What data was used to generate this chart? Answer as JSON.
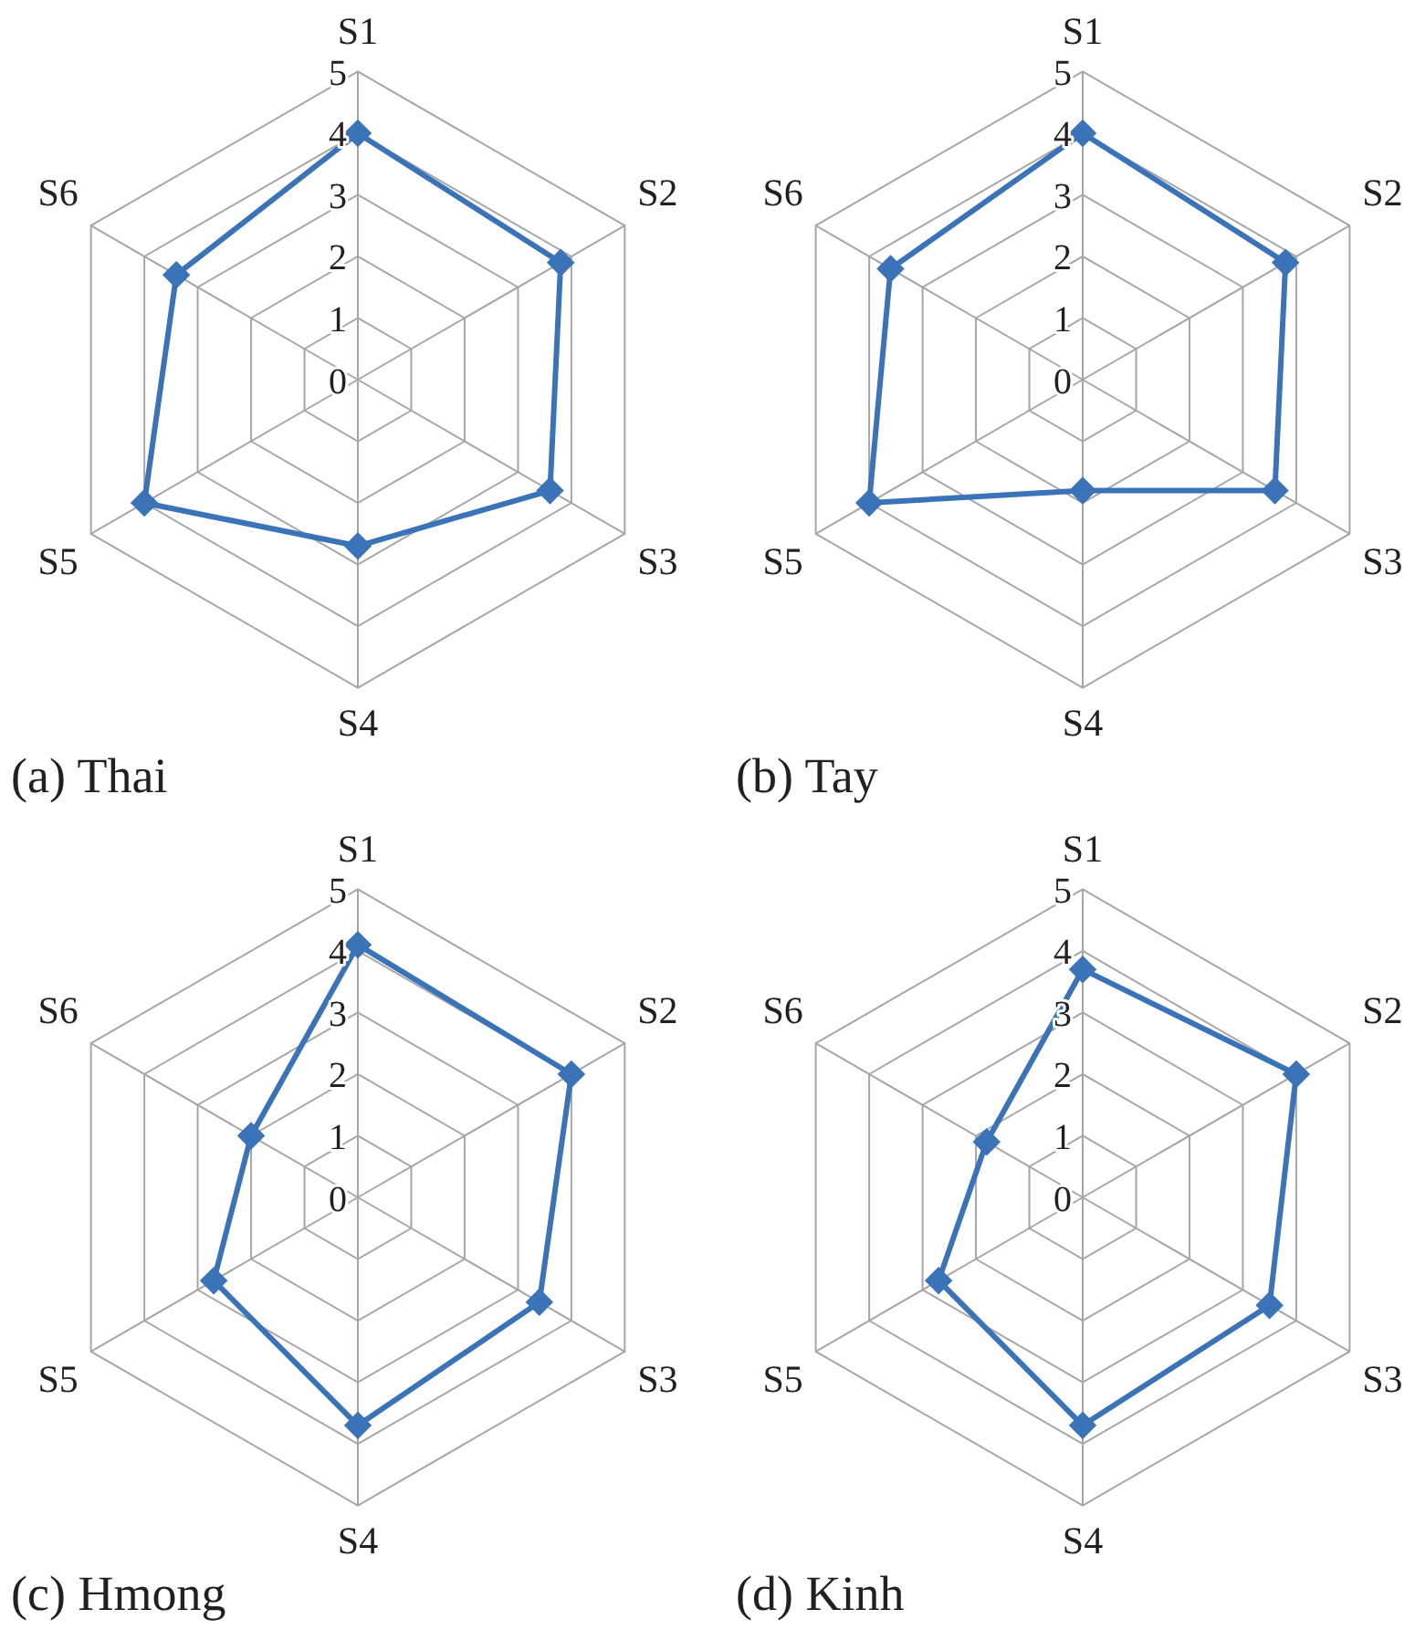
{
  "chart_data": [
    {
      "type": "radar",
      "title": "(a) Thai",
      "categories": [
        "S1",
        "S2",
        "S3",
        "S4",
        "S5",
        "S6"
      ],
      "series": [
        {
          "color": "#3b73b9",
          "values": [
            4.0,
            3.8,
            3.6,
            2.7,
            4.0,
            3.4
          ]
        }
      ],
      "ylim": [
        0,
        5
      ],
      "yticks": [
        0,
        1,
        2,
        3,
        4,
        5
      ],
      "grid": true,
      "marker": "diamond"
    },
    {
      "type": "radar",
      "title": "(b) Tay",
      "categories": [
        "S1",
        "S2",
        "S3",
        "S4",
        "S5",
        "S6"
      ],
      "series": [
        {
          "color": "#3b73b9",
          "values": [
            4.0,
            3.8,
            3.6,
            1.8,
            4.0,
            3.6
          ]
        }
      ],
      "ylim": [
        0,
        5
      ],
      "yticks": [
        0,
        1,
        2,
        3,
        4,
        5
      ],
      "grid": true,
      "marker": "diamond"
    },
    {
      "type": "radar",
      "title": "(c) Hmong",
      "categories": [
        "S1",
        "S2",
        "S3",
        "S4",
        "S5",
        "S6"
      ],
      "series": [
        {
          "color": "#3b73b9",
          "values": [
            4.1,
            4.0,
            3.4,
            3.7,
            2.7,
            2.0
          ]
        }
      ],
      "ylim": [
        0,
        5
      ],
      "yticks": [
        0,
        1,
        2,
        3,
        4,
        5
      ],
      "grid": true,
      "marker": "diamond"
    },
    {
      "type": "radar",
      "title": "(d) Kinh",
      "categories": [
        "S1",
        "S2",
        "S3",
        "S4",
        "S5",
        "S6"
      ],
      "series": [
        {
          "color": "#3b73b9",
          "values": [
            3.7,
            4.0,
            3.5,
            3.7,
            2.7,
            1.8
          ]
        }
      ],
      "ylim": [
        0,
        5
      ],
      "yticks": [
        0,
        1,
        2,
        3,
        4,
        5
      ],
      "grid": true,
      "marker": "diamond"
    }
  ]
}
